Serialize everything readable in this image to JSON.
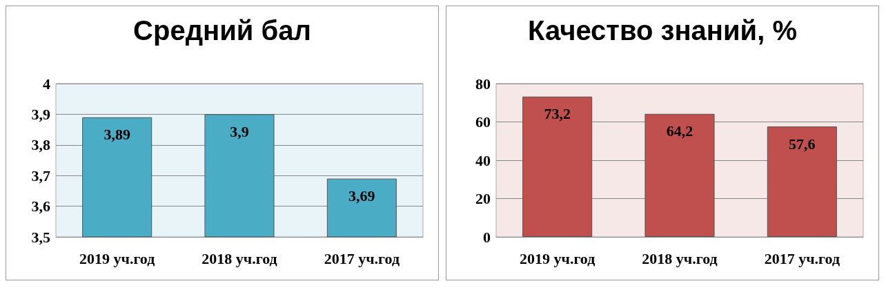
{
  "chart_data": [
    {
      "type": "bar",
      "title": "Средний бал",
      "categories": [
        "2019 уч.год",
        "2018 уч.год",
        "2017 уч.год"
      ],
      "values": [
        3.89,
        3.9,
        3.69
      ],
      "value_labels": [
        "3,89",
        "3,9",
        "3,69"
      ],
      "color": "#4bacc6",
      "ylim": [
        3.5,
        4
      ],
      "yticks": [
        {
          "value": 3.5,
          "label": "3,5"
        },
        {
          "value": 3.6,
          "label": "3,6"
        },
        {
          "value": 3.7,
          "label": "3,7"
        },
        {
          "value": 3.8,
          "label": "3,8"
        },
        {
          "value": 3.9,
          "label": "3,9"
        },
        4
      ],
      "grid": "y"
    },
    {
      "type": "bar",
      "title": "Качество знаний, %",
      "categories": [
        "2019 уч.год",
        "2018 уч.год",
        "2017 уч.год"
      ],
      "values": [
        73.2,
        64.2,
        57.6
      ],
      "value_labels": [
        "73,2",
        "64,2",
        "57,6"
      ],
      "color": "#c0504d",
      "ylim": [
        0,
        80
      ],
      "yticks": [
        0,
        20,
        40,
        60,
        80
      ],
      "grid": "y"
    }
  ]
}
